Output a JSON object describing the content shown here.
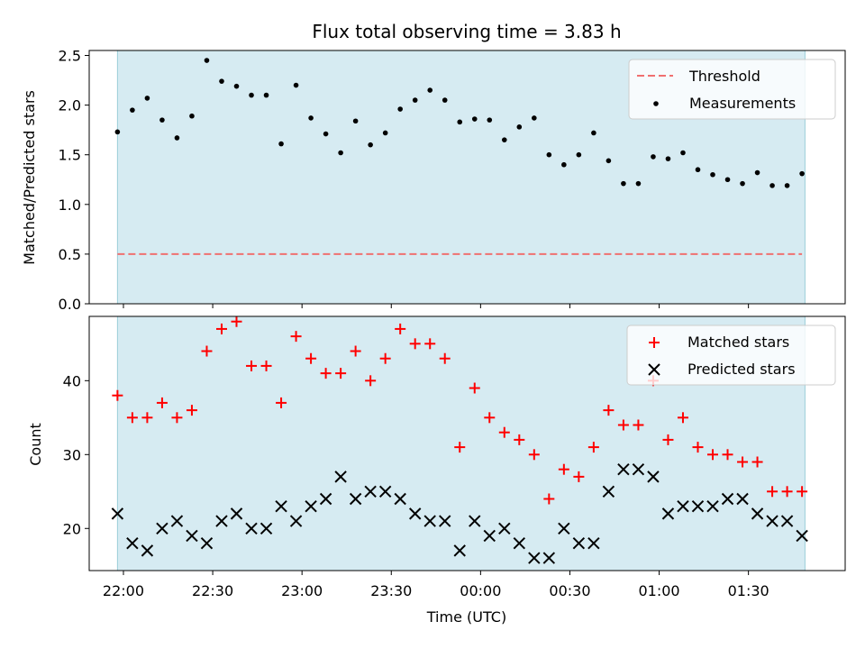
{
  "chart_data": [
    {
      "type": "scatter",
      "title": "Flux total observing time = 3.83 h",
      "xlabel": "",
      "ylabel": "Matched/Predicted stars",
      "ylim": [
        0,
        2.55
      ],
      "yticks": [
        "0.0",
        "0.5",
        "1.0",
        "1.5",
        "2.0",
        "2.5"
      ],
      "observing_window": [
        "21:58",
        "01:49"
      ],
      "legend_position": "top-right",
      "threshold": {
        "name": "Threshold",
        "value": 0.5,
        "color": "#f07070",
        "style": "dashed"
      },
      "series": [
        {
          "name": "Measurements",
          "color": "#000000",
          "marker": "dot",
          "x": [
            "21:58",
            "22:03",
            "22:08",
            "22:13",
            "22:18",
            "22:23",
            "22:28",
            "22:33",
            "22:38",
            "22:43",
            "22:48",
            "22:53",
            "22:58",
            "23:03",
            "23:08",
            "23:13",
            "23:18",
            "23:23",
            "23:28",
            "23:33",
            "23:38",
            "23:43",
            "23:48",
            "23:53",
            "23:58",
            "00:03",
            "00:08",
            "00:13",
            "00:18",
            "00:23",
            "00:28",
            "00:33",
            "00:38",
            "00:43",
            "00:48",
            "00:53",
            "00:58",
            "01:03",
            "01:08",
            "01:13",
            "01:18",
            "01:23",
            "01:28",
            "01:33",
            "01:38",
            "01:43",
            "01:48"
          ],
          "y": [
            1.73,
            1.95,
            2.07,
            1.85,
            1.67,
            1.89,
            2.45,
            2.24,
            2.19,
            2.1,
            2.1,
            1.61,
            2.2,
            1.87,
            1.71,
            1.52,
            1.84,
            1.6,
            1.72,
            1.96,
            2.05,
            2.15,
            2.05,
            1.83,
            1.86,
            1.85,
            1.65,
            1.78,
            1.87,
            1.5,
            1.4,
            1.5,
            1.72,
            1.44,
            1.21,
            1.21,
            1.48,
            1.46,
            1.52,
            1.35,
            1.3,
            1.25,
            1.21,
            1.32,
            1.19,
            1.19,
            1.31
          ]
        }
      ]
    },
    {
      "type": "scatter",
      "title": "",
      "xlabel": "Time (UTC)",
      "ylabel": "Count",
      "ylim": [
        14.3,
        48.7
      ],
      "yticks": [
        "20",
        "30",
        "40"
      ],
      "xticks": [
        "22:00",
        "22:30",
        "23:00",
        "23:30",
        "00:00",
        "00:30",
        "01:00",
        "01:30"
      ],
      "observing_window": [
        "21:58",
        "01:49"
      ],
      "legend_position": "top-right",
      "series": [
        {
          "name": "Matched stars",
          "color": "#ff0000",
          "marker": "plus",
          "x": [
            "21:58",
            "22:03",
            "22:08",
            "22:13",
            "22:18",
            "22:23",
            "22:28",
            "22:33",
            "22:38",
            "22:43",
            "22:48",
            "22:53",
            "22:58",
            "23:03",
            "23:08",
            "23:13",
            "23:18",
            "23:23",
            "23:28",
            "23:33",
            "23:38",
            "23:43",
            "23:48",
            "23:53",
            "23:58",
            "00:03",
            "00:08",
            "00:13",
            "00:18",
            "00:23",
            "00:28",
            "00:33",
            "00:38",
            "00:43",
            "00:48",
            "00:53",
            "00:58",
            "01:03",
            "01:08",
            "01:13",
            "01:18",
            "01:23",
            "01:28",
            "01:33",
            "01:38",
            "01:43",
            "01:48"
          ],
          "y": [
            38,
            35,
            35,
            37,
            35,
            36,
            44,
            47,
            48,
            42,
            42,
            37,
            46,
            43,
            41,
            41,
            44,
            40,
            43,
            47,
            45,
            45,
            43,
            31,
            39,
            35,
            33,
            32,
            30,
            24,
            28,
            27,
            31,
            36,
            34,
            34,
            40,
            32,
            35,
            31,
            30,
            30,
            29,
            29,
            25,
            25,
            25
          ]
        },
        {
          "name": "Predicted stars",
          "color": "#000000",
          "marker": "x",
          "x": [
            "21:58",
            "22:03",
            "22:08",
            "22:13",
            "22:18",
            "22:23",
            "22:28",
            "22:33",
            "22:38",
            "22:43",
            "22:48",
            "22:53",
            "22:58",
            "23:03",
            "23:08",
            "23:13",
            "23:18",
            "23:23",
            "23:28",
            "23:33",
            "23:38",
            "23:43",
            "23:48",
            "23:53",
            "23:58",
            "00:03",
            "00:08",
            "00:13",
            "00:18",
            "00:23",
            "00:28",
            "00:33",
            "00:38",
            "00:43",
            "00:48",
            "00:53",
            "00:58",
            "01:03",
            "01:08",
            "01:13",
            "01:18",
            "01:23",
            "01:28",
            "01:33",
            "01:38",
            "01:43",
            "01:48"
          ],
          "y": [
            22,
            18,
            17,
            20,
            21,
            19,
            18,
            21,
            22,
            20,
            20,
            23,
            21,
            23,
            24,
            27,
            24,
            25,
            25,
            24,
            22,
            21,
            21,
            17,
            21,
            19,
            20,
            18,
            16,
            16,
            20,
            18,
            18,
            25,
            28,
            28,
            27,
            22,
            23,
            23,
            23,
            24,
            24,
            22,
            21,
            21,
            19
          ]
        }
      ]
    }
  ]
}
